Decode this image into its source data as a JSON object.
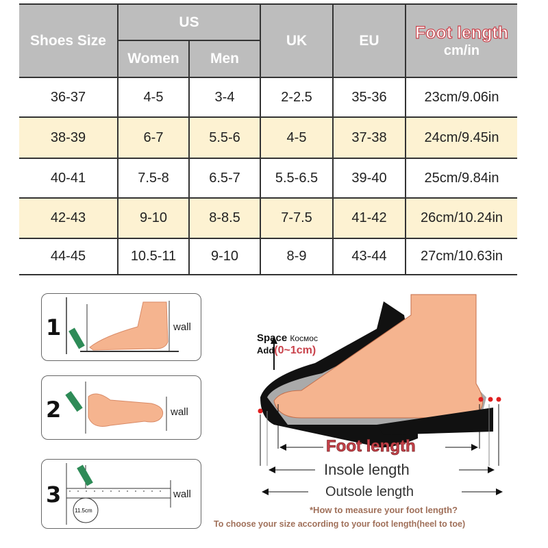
{
  "table": {
    "headers": {
      "size": "Shoes Size",
      "us": "US",
      "women": "Women",
      "men": "Men",
      "uk": "UK",
      "eu": "EU",
      "foot": "Foot length",
      "unit": "cm/in"
    },
    "rows": [
      [
        "36-37",
        "4-5",
        "3-4",
        "2-2.5",
        "35-36",
        "23cm/9.06in"
      ],
      [
        "38-39",
        "6-7",
        "5.5-6",
        "4-5",
        "37-38",
        "24cm/9.45in"
      ],
      [
        "40-41",
        "7.5-8",
        "6.5-7",
        "5.5-6.5",
        "39-40",
        "25cm/9.84in"
      ],
      [
        "42-43",
        "9-10",
        "8-8.5",
        "7-7.5",
        "41-42",
        "26cm/10.24in"
      ],
      [
        "44-45",
        "10.5-11",
        "9-10",
        "8-9",
        "43-44",
        "27cm/10.63in"
      ]
    ]
  },
  "steps": [
    {
      "num": "1",
      "wall": "wall"
    },
    {
      "num": "2",
      "wall": "wall"
    },
    {
      "num": "3",
      "wall": "wall",
      "ruler": "11.5cm"
    }
  ],
  "diagram": {
    "space": "Space",
    "space_ru": "Космос",
    "add": "Add",
    "add_range": "(0~1cm)",
    "foot_length": "Foot length",
    "insole": "Insole length",
    "outsole": "Outsole length",
    "how": "*How to measure your foot length?",
    "choose": "To choose your size according to your foot length(heel to toe)"
  },
  "colors": {
    "header": "#bdbdbd",
    "alt_row": "#fdf2d2",
    "accent": "#c9424b",
    "skin": "#f5b48f"
  }
}
